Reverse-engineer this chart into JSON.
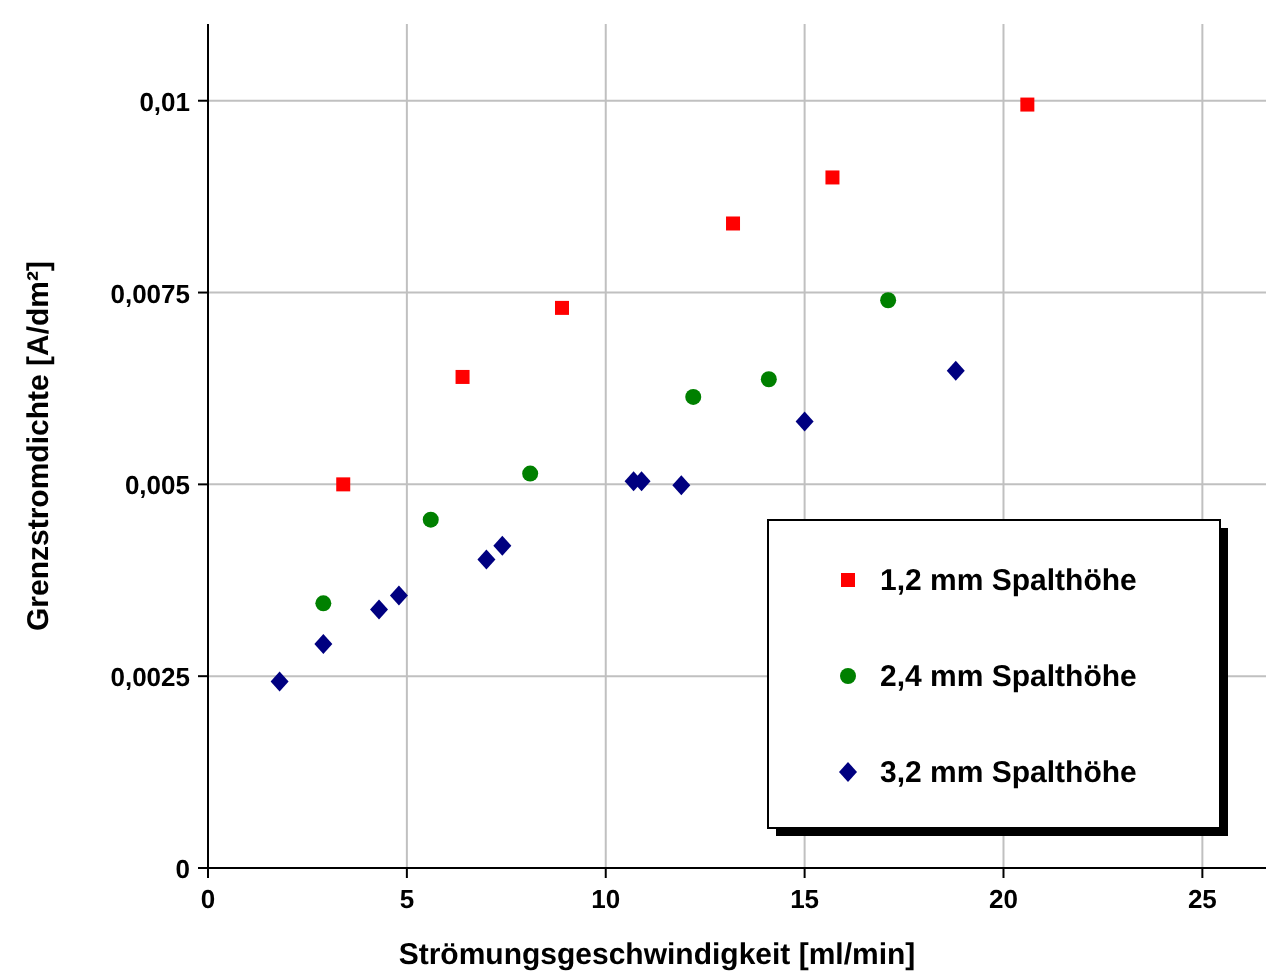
{
  "chart_data": {
    "type": "scatter",
    "xlabel": "Strömungsgeschwindigkeit [ml/min]",
    "ylabel": "Grenzstromdichte [A/dm²]",
    "xlim": [
      0,
      26.6
    ],
    "xticks": [
      0,
      5,
      10,
      15,
      20,
      25
    ],
    "ylim": [
      0,
      0.011
    ],
    "yticks": [
      0,
      {
        "value": 0.0025,
        "label": "0,0025"
      },
      {
        "value": 0.005,
        "label": "0,005"
      },
      {
        "value": 0.0075,
        "label": "0,0075"
      },
      {
        "value": 0.01,
        "label": "0,01"
      }
    ],
    "grid": true,
    "legend": "bottom right",
    "series": [
      {
        "name": "1,2 mm Spalthöhe",
        "color": "#ff0000",
        "marker": "square",
        "x": [
          3.4,
          6.4,
          8.9,
          13.2,
          15.7,
          20.6
        ],
        "values": [
          0.005,
          0.0064,
          0.0073,
          0.0084,
          0.009,
          0.00995
        ]
      },
      {
        "name": "2,4 mm Spalthöhe",
        "color": "#008000",
        "marker": "circle",
        "x": [
          2.9,
          5.6,
          8.1,
          12.2,
          14.1,
          17.1
        ],
        "values": [
          0.00345,
          0.00454,
          0.00514,
          0.00614,
          0.00637,
          0.0074
        ]
      },
      {
        "name": "3,2 mm Spalthöhe",
        "color": "#000080",
        "marker": "diamond",
        "x": [
          1.8,
          2.9,
          4.3,
          4.8,
          7.0,
          7.4,
          10.7,
          10.9,
          11.9,
          15.0,
          18.8
        ],
        "values": [
          0.00243,
          0.00292,
          0.00337,
          0.00355,
          0.00402,
          0.0042,
          0.00504,
          0.00504,
          0.00499,
          0.00582,
          0.00648
        ]
      }
    ]
  }
}
